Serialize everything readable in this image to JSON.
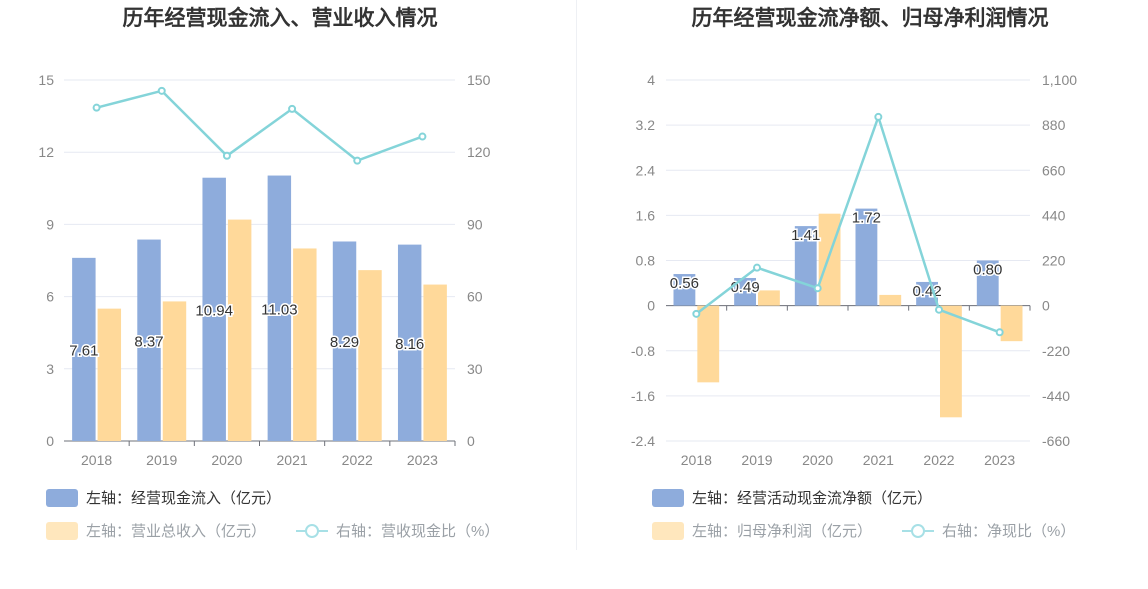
{
  "colors": {
    "bar1": "#8eacdc",
    "bar2": "#ffd99a",
    "line": "#84d4d9",
    "grid": "#e6e9f2",
    "axis": "#888888",
    "text": "#333333"
  },
  "chart_data": [
    {
      "type": "bar",
      "title": "历年经营现金流入、营业收入情况",
      "categories": [
        "2018",
        "2019",
        "2020",
        "2021",
        "2022",
        "2023"
      ],
      "left_axis": {
        "ticks": [
          "0",
          "3",
          "6",
          "9",
          "12",
          "15"
        ],
        "ylim": [
          0,
          15
        ]
      },
      "right_axis": {
        "ticks": [
          "0",
          "30",
          "60",
          "90",
          "120",
          "150"
        ],
        "ylim": [
          0,
          150
        ]
      },
      "series": [
        {
          "name": "左轴：经营现金流入（亿元）",
          "kind": "bar",
          "axis": "left",
          "values": [
            7.61,
            8.37,
            10.94,
            11.03,
            8.29,
            8.16
          ],
          "labels": [
            "7.61",
            "8.37",
            "10.94",
            "11.03",
            "8.29",
            "8.16"
          ]
        },
        {
          "name": "左轴：营业总收入（亿元）",
          "kind": "bar",
          "axis": "left",
          "values": [
            5.5,
            5.8,
            9.2,
            8.0,
            7.1,
            6.5
          ]
        },
        {
          "name": "右轴：营收现金比（%）",
          "kind": "line",
          "axis": "right",
          "values": [
            138.5,
            145.5,
            118.5,
            138.0,
            116.5,
            126.5
          ]
        }
      ],
      "legend_position": "bottom-left",
      "grid": true
    },
    {
      "type": "bar",
      "title": "历年经营现金流净额、归母净利润情况",
      "categories": [
        "2018",
        "2019",
        "2020",
        "2021",
        "2022",
        "2023"
      ],
      "left_axis": {
        "ticks": [
          "-2.4",
          "-1.6",
          "-0.8",
          "0",
          "0.8",
          "1.6",
          "2.4",
          "3.2",
          "4"
        ],
        "ylim": [
          -2.4,
          4
        ]
      },
      "right_axis": {
        "ticks": [
          "-660",
          "-440",
          "-220",
          "0",
          "220",
          "440",
          "660",
          "880",
          "1,100"
        ],
        "ylim": [
          -660,
          1100
        ]
      },
      "series": [
        {
          "name": "左轴：经营活动现金流净额（亿元）",
          "kind": "bar",
          "axis": "left",
          "values": [
            0.56,
            0.49,
            1.41,
            1.72,
            0.42,
            0.8
          ],
          "labels": [
            "0.56",
            "0.49",
            "1.41",
            "1.72",
            "0.42",
            "0.80"
          ]
        },
        {
          "name": "左轴：归母净利润（亿元）",
          "kind": "bar",
          "axis": "left",
          "values": [
            -1.36,
            0.27,
            1.63,
            0.19,
            -1.98,
            -0.63
          ]
        },
        {
          "name": "右轴：净现比（%）",
          "kind": "line",
          "axis": "right",
          "values": [
            -40,
            185,
            85,
            920,
            -20,
            -130
          ]
        }
      ],
      "legend_position": "bottom-left",
      "grid": true
    }
  ]
}
